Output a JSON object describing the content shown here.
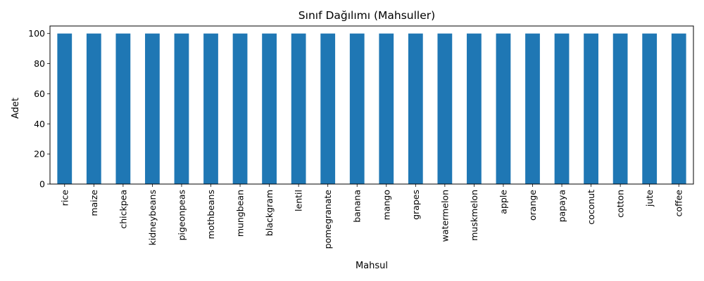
{
  "chart_data": {
    "type": "bar",
    "title": "Sınıf Dağılımı (Mahsuller)",
    "xlabel": "Mahsul",
    "ylabel": "Adet",
    "ylim": [
      0,
      105
    ],
    "yticks": [
      0,
      20,
      40,
      60,
      80,
      100
    ],
    "grid": false,
    "legend": "none",
    "bar_color": "#1f77b4",
    "categories": [
      "rice",
      "maize",
      "chickpea",
      "kidneybeans",
      "pigeonpeas",
      "mothbeans",
      "mungbean",
      "blackgram",
      "lentil",
      "pomegranate",
      "banana",
      "mango",
      "grapes",
      "watermelon",
      "muskmelon",
      "apple",
      "orange",
      "papaya",
      "coconut",
      "cotton",
      "jute",
      "coffee"
    ],
    "values": [
      100,
      100,
      100,
      100,
      100,
      100,
      100,
      100,
      100,
      100,
      100,
      100,
      100,
      100,
      100,
      100,
      100,
      100,
      100,
      100,
      100,
      100
    ]
  }
}
